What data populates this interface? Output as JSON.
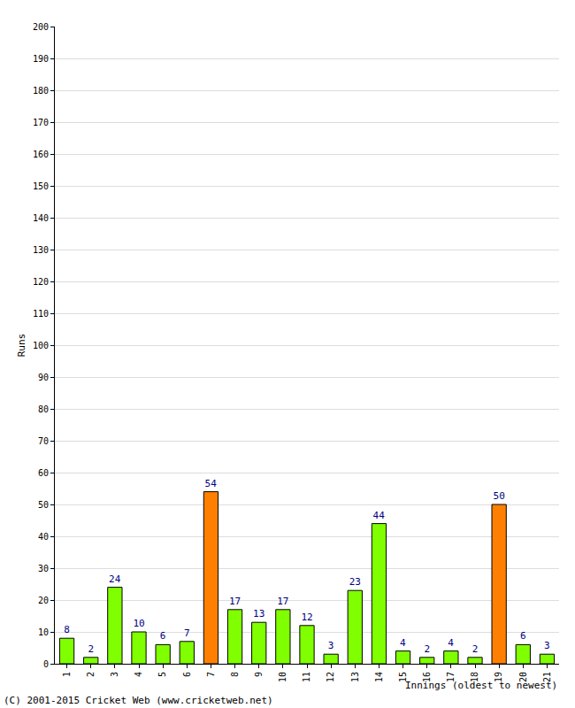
{
  "chart_data": {
    "type": "bar",
    "x_label": "Innings (oldest to newest)",
    "y_label": "Runs",
    "categories": [
      "1",
      "2",
      "3",
      "4",
      "5",
      "6",
      "7",
      "8",
      "9",
      "10",
      "11",
      "12",
      "13",
      "14",
      "15",
      "16",
      "17",
      "18",
      "19",
      "20",
      "21"
    ],
    "values": [
      8,
      2,
      24,
      10,
      6,
      7,
      54,
      17,
      13,
      17,
      12,
      3,
      23,
      44,
      4,
      2,
      4,
      2,
      50,
      6,
      3
    ],
    "colors": [
      "#80ff00",
      "#80ff00",
      "#80ff00",
      "#80ff00",
      "#80ff00",
      "#80ff00",
      "#ff8000",
      "#80ff00",
      "#80ff00",
      "#80ff00",
      "#80ff00",
      "#80ff00",
      "#80ff00",
      "#80ff00",
      "#80ff00",
      "#80ff00",
      "#80ff00",
      "#80ff00",
      "#ff8000",
      "#80ff00",
      "#80ff00"
    ],
    "ylim": [
      0,
      200
    ],
    "yticks": [
      0,
      10,
      20,
      30,
      40,
      50,
      60,
      70,
      80,
      90,
      100,
      110,
      120,
      130,
      140,
      150,
      160,
      170,
      180,
      190,
      200
    ],
    "grid": true,
    "data_labels": true,
    "annotations": [
      "(C) 2001-2015 Cricket Web (www.cricketweb.net)"
    ]
  }
}
